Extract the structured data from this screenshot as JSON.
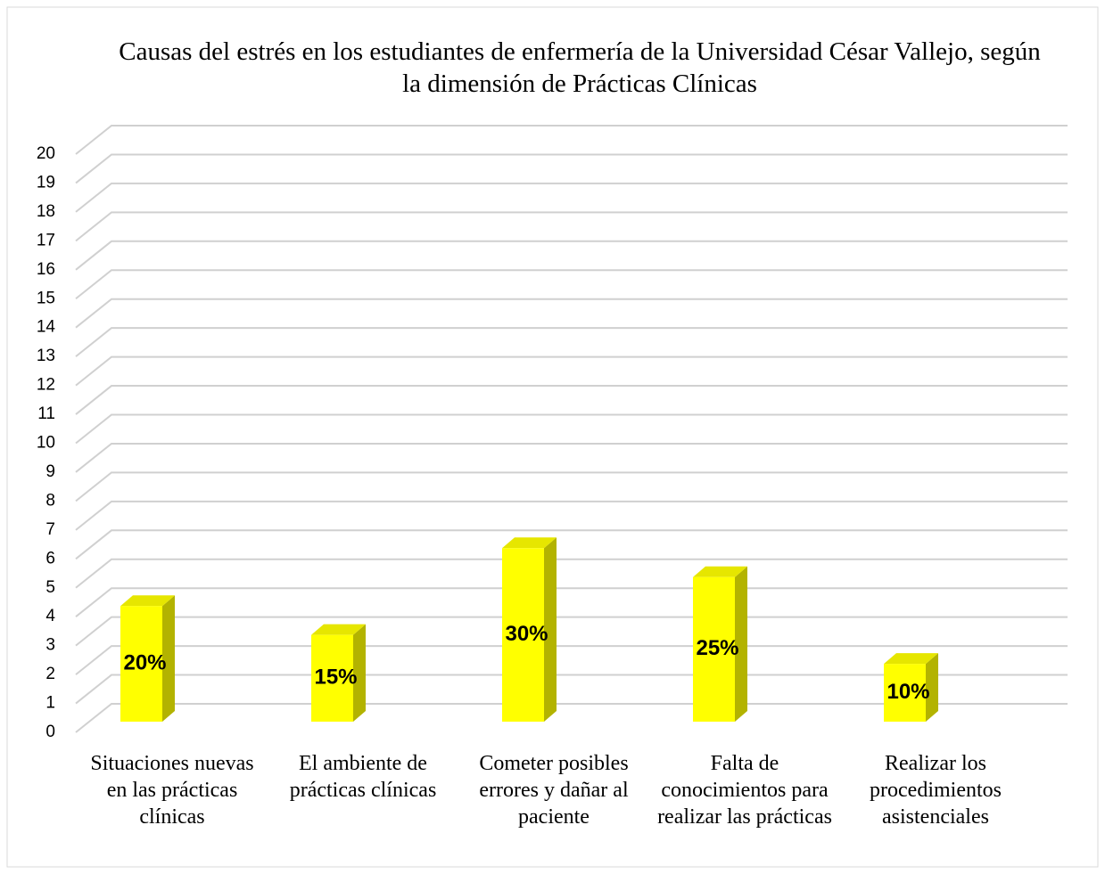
{
  "chart_data": {
    "type": "bar3d",
    "title": "Causas del estrés en los estudiantes de enfermería de la Universidad César Vallejo, según la dimensión de Prácticas Clínicas",
    "categories": [
      "Situaciones nuevas en las prácticas clínicas",
      "El ambiente de prácticas clínicas",
      "Cometer posibles errores y dañar al paciente",
      "Falta de conocimientos para realizar las prácticas",
      "Realizar los procedimientos asistenciales"
    ],
    "values": [
      4,
      3,
      6,
      5,
      2
    ],
    "color": "#ffff00",
    "percent": {
      "values": [
        20,
        15,
        30,
        25,
        10
      ],
      "value_labels": [
        "20%",
        "15%",
        "30%",
        "25%",
        "10%"
      ]
    },
    "ylim": [
      0,
      20
    ],
    "yticks": [
      0,
      1,
      2,
      3,
      4,
      5,
      6,
      7,
      8,
      9,
      10,
      11,
      12,
      13,
      14,
      15,
      16,
      17,
      18,
      19,
      20
    ],
    "grid": true
  }
}
